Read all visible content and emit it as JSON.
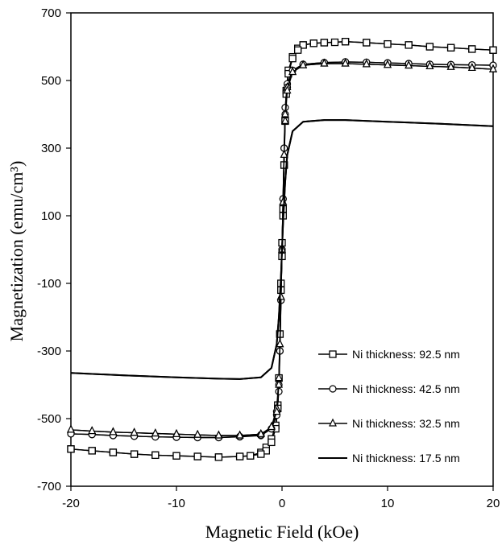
{
  "chart_data": {
    "type": "line",
    "xlabel": "Magnetic Field (kOe)",
    "ylabel": "Magnetization (emu/cm³)",
    "xlim": [
      -20,
      20
    ],
    "ylim": [
      -700,
      700
    ],
    "xticks": [
      "-20",
      "-10",
      "0",
      "10",
      "20"
    ],
    "yticks": [
      "700",
      "500",
      "300",
      "100",
      "-100",
      "-300",
      "-500",
      "-700"
    ],
    "xtick_values": [
      -20,
      -10,
      0,
      10,
      20
    ],
    "ytick_values": [
      700,
      500,
      300,
      100,
      -100,
      -300,
      -500,
      -700
    ],
    "grid": false,
    "legend_position": "bottom-right",
    "series": [
      {
        "name": "Ni thickness: 92.5 nm",
        "marker": "square",
        "upper": [
          [
            -20,
            -590
          ],
          [
            -18,
            -595
          ],
          [
            -16,
            -600
          ],
          [
            -14,
            -605
          ],
          [
            -12,
            -608
          ],
          [
            -10,
            -610
          ],
          [
            -8,
            -612
          ],
          [
            -6,
            -614
          ],
          [
            -4,
            -612
          ],
          [
            -3,
            -610
          ],
          [
            -2,
            -600
          ],
          [
            -1.5,
            -585
          ],
          [
            -1,
            -560
          ],
          [
            -0.6,
            -520
          ],
          [
            -0.4,
            -460
          ],
          [
            -0.3,
            -380
          ],
          [
            -0.2,
            -250
          ],
          [
            -0.1,
            -100
          ],
          [
            0,
            20
          ],
          [
            0.1,
            120
          ],
          [
            0.2,
            250
          ],
          [
            0.3,
            380
          ],
          [
            0.4,
            470
          ],
          [
            0.6,
            530
          ],
          [
            1,
            570
          ],
          [
            1.5,
            595
          ],
          [
            2,
            605
          ],
          [
            3,
            610
          ],
          [
            4,
            612
          ],
          [
            5,
            613
          ],
          [
            6,
            615
          ],
          [
            8,
            612
          ],
          [
            10,
            608
          ],
          [
            12,
            605
          ],
          [
            14,
            600
          ],
          [
            16,
            597
          ],
          [
            18,
            593
          ],
          [
            20,
            590
          ]
        ],
        "lower": [
          [
            20,
            590
          ],
          [
            18,
            593
          ],
          [
            16,
            597
          ],
          [
            14,
            600
          ],
          [
            12,
            605
          ],
          [
            10,
            608
          ],
          [
            8,
            612
          ],
          [
            6,
            615
          ],
          [
            4,
            612
          ],
          [
            3,
            610
          ],
          [
            2,
            605
          ],
          [
            1.5,
            590
          ],
          [
            1,
            565
          ],
          [
            0.6,
            520
          ],
          [
            0.4,
            460
          ],
          [
            0.3,
            380
          ],
          [
            0.2,
            250
          ],
          [
            0.1,
            100
          ],
          [
            0,
            -20
          ],
          [
            -0.1,
            -120
          ],
          [
            -0.2,
            -250
          ],
          [
            -0.3,
            -380
          ],
          [
            -0.4,
            -470
          ],
          [
            -0.6,
            -530
          ],
          [
            -1,
            -570
          ],
          [
            -1.5,
            -595
          ],
          [
            -2,
            -605
          ],
          [
            -3,
            -610
          ],
          [
            -4,
            -612
          ],
          [
            -6,
            -614
          ],
          [
            -8,
            -612
          ],
          [
            -10,
            -610
          ],
          [
            -12,
            -608
          ],
          [
            -14,
            -605
          ],
          [
            -16,
            -600
          ],
          [
            -18,
            -595
          ],
          [
            -20,
            -590
          ]
        ]
      },
      {
        "name": "Ni thickness: 42.5 nm",
        "marker": "circle",
        "upper": [
          [
            -20,
            -545
          ],
          [
            -18,
            -547
          ],
          [
            -16,
            -550
          ],
          [
            -14,
            -552
          ],
          [
            -12,
            -554
          ],
          [
            -10,
            -555
          ],
          [
            -8,
            -556
          ],
          [
            -6,
            -556
          ],
          [
            -4,
            -554
          ],
          [
            -2,
            -550
          ],
          [
            -1,
            -530
          ],
          [
            -0.5,
            -480
          ],
          [
            -0.3,
            -400
          ],
          [
            -0.2,
            -300
          ],
          [
            -0.1,
            -150
          ],
          [
            0,
            0
          ],
          [
            0.1,
            150
          ],
          [
            0.2,
            300
          ],
          [
            0.3,
            420
          ],
          [
            0.5,
            490
          ],
          [
            1,
            530
          ],
          [
            2,
            548
          ],
          [
            4,
            553
          ],
          [
            6,
            555
          ],
          [
            8,
            554
          ],
          [
            10,
            552
          ],
          [
            12,
            550
          ],
          [
            14,
            548
          ],
          [
            16,
            547
          ],
          [
            18,
            546
          ],
          [
            20,
            545
          ]
        ],
        "lower": [
          [
            20,
            545
          ],
          [
            18,
            546
          ],
          [
            16,
            547
          ],
          [
            14,
            548
          ],
          [
            12,
            550
          ],
          [
            10,
            552
          ],
          [
            8,
            554
          ],
          [
            6,
            555
          ],
          [
            4,
            553
          ],
          [
            2,
            548
          ],
          [
            1,
            530
          ],
          [
            0.5,
            480
          ],
          [
            0.3,
            400
          ],
          [
            0.2,
            300
          ],
          [
            0.1,
            150
          ],
          [
            0,
            0
          ],
          [
            -0.1,
            -150
          ],
          [
            -0.2,
            -300
          ],
          [
            -0.3,
            -420
          ],
          [
            -0.5,
            -490
          ],
          [
            -1,
            -530
          ],
          [
            -2,
            -548
          ],
          [
            -4,
            -553
          ],
          [
            -6,
            -556
          ],
          [
            -8,
            -556
          ],
          [
            -10,
            -555
          ],
          [
            -12,
            -554
          ],
          [
            -14,
            -552
          ],
          [
            -16,
            -550
          ],
          [
            -18,
            -547
          ],
          [
            -20,
            -545
          ]
        ]
      },
      {
        "name": "Ni thickness: 32.5 nm",
        "marker": "triangle",
        "upper": [
          [
            -20,
            -533
          ],
          [
            -18,
            -537
          ],
          [
            -16,
            -540
          ],
          [
            -14,
            -542
          ],
          [
            -12,
            -544
          ],
          [
            -10,
            -546
          ],
          [
            -8,
            -548
          ],
          [
            -6,
            -550
          ],
          [
            -4,
            -550
          ],
          [
            -2,
            -546
          ],
          [
            -1,
            -525
          ],
          [
            -0.5,
            -470
          ],
          [
            -0.3,
            -380
          ],
          [
            -0.2,
            -280
          ],
          [
            -0.1,
            -140
          ],
          [
            0,
            0
          ],
          [
            0.1,
            140
          ],
          [
            0.2,
            280
          ],
          [
            0.3,
            400
          ],
          [
            0.5,
            480
          ],
          [
            1,
            525
          ],
          [
            2,
            545
          ],
          [
            4,
            550
          ],
          [
            6,
            550
          ],
          [
            8,
            548
          ],
          [
            10,
            546
          ],
          [
            12,
            544
          ],
          [
            14,
            542
          ],
          [
            16,
            540
          ],
          [
            18,
            537
          ],
          [
            20,
            533
          ]
        ],
        "lower": [
          [
            20,
            533
          ],
          [
            18,
            537
          ],
          [
            16,
            540
          ],
          [
            14,
            542
          ],
          [
            12,
            544
          ],
          [
            10,
            546
          ],
          [
            8,
            548
          ],
          [
            6,
            550
          ],
          [
            4,
            550
          ],
          [
            2,
            545
          ],
          [
            1,
            525
          ],
          [
            0.5,
            470
          ],
          [
            0.3,
            380
          ],
          [
            0.2,
            280
          ],
          [
            0.1,
            140
          ],
          [
            0,
            0
          ],
          [
            -0.1,
            -140
          ],
          [
            -0.2,
            -280
          ],
          [
            -0.3,
            -400
          ],
          [
            -0.5,
            -480
          ],
          [
            -1,
            -525
          ],
          [
            -2,
            -546
          ],
          [
            -4,
            -550
          ],
          [
            -6,
            -550
          ],
          [
            -8,
            -548
          ],
          [
            -10,
            -546
          ],
          [
            -12,
            -544
          ],
          [
            -14,
            -542
          ],
          [
            -16,
            -540
          ],
          [
            -18,
            -537
          ],
          [
            -20,
            -533
          ]
        ]
      },
      {
        "name": "Ni thickness: 17.5 nm",
        "marker": "none",
        "upper": [
          [
            -20,
            -365
          ],
          [
            -15,
            -372
          ],
          [
            -10,
            -378
          ],
          [
            -6,
            -382
          ],
          [
            -4,
            -383
          ],
          [
            -2,
            -378
          ],
          [
            -1,
            -350
          ],
          [
            -0.5,
            -280
          ],
          [
            -0.3,
            -200
          ],
          [
            -0.1,
            -80
          ],
          [
            0,
            0
          ],
          [
            0.1,
            80
          ],
          [
            0.3,
            200
          ],
          [
            0.5,
            280
          ],
          [
            1,
            350
          ],
          [
            2,
            378
          ],
          [
            4,
            383
          ],
          [
            6,
            383
          ],
          [
            10,
            378
          ],
          [
            15,
            372
          ],
          [
            20,
            365
          ]
        ],
        "lower": [
          [
            20,
            365
          ],
          [
            15,
            372
          ],
          [
            10,
            378
          ],
          [
            6,
            383
          ],
          [
            4,
            383
          ],
          [
            2,
            378
          ],
          [
            1,
            350
          ],
          [
            0.5,
            280
          ],
          [
            0.3,
            200
          ],
          [
            0.1,
            80
          ],
          [
            0,
            0
          ],
          [
            -0.1,
            -80
          ],
          [
            -0.3,
            -200
          ],
          [
            -0.5,
            -280
          ],
          [
            -1,
            -350
          ],
          [
            -2,
            -378
          ],
          [
            -4,
            -383
          ],
          [
            -6,
            -382
          ],
          [
            -10,
            -378
          ],
          [
            -15,
            -372
          ],
          [
            -20,
            -365
          ]
        ]
      }
    ]
  }
}
